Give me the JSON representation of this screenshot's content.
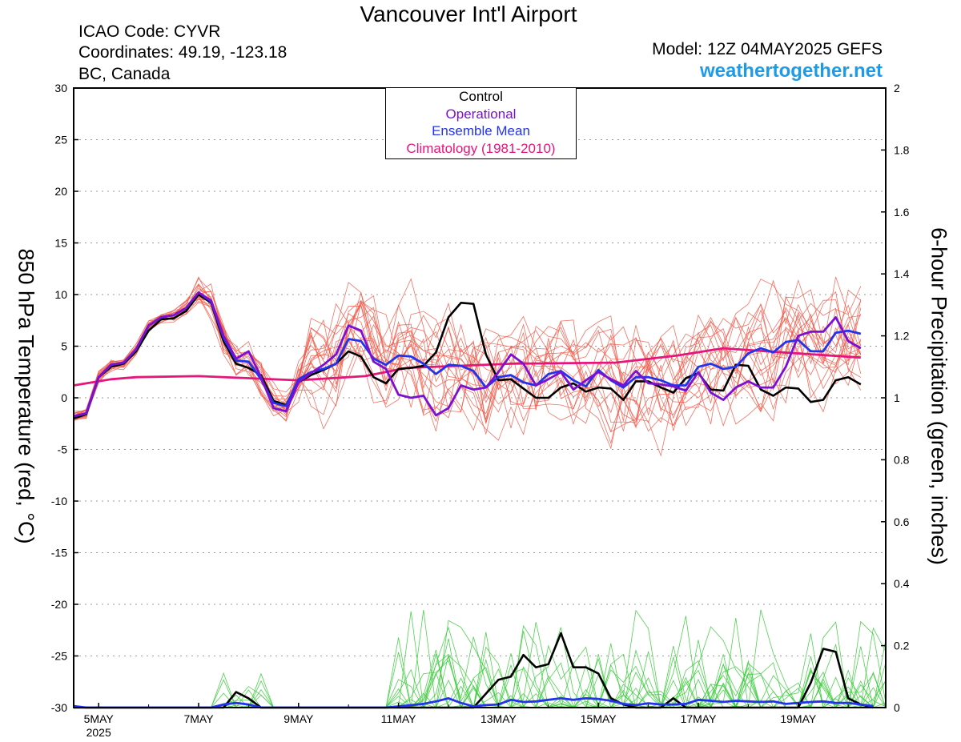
{
  "header": {
    "title": "Vancouver Int'l Airport",
    "icao": "ICAO Code: CYVR",
    "coords": "Coordinates: 49.19, -123.18",
    "region": "BC, Canada",
    "model": "Model: 12Z 04MAY2025 GEFS",
    "site": "weathertogether.net"
  },
  "legend": {
    "control": "Control",
    "operational": "Operational",
    "ensemble_mean": "Ensemble Mean",
    "climatology": "Climatology (1981-2010)"
  },
  "axes": {
    "left_label": "850 hPa Temperature (red, °C)",
    "right_label": "6-hour Precipitation (green, inches)",
    "left_ticks": [
      "30",
      "25",
      "20",
      "15",
      "10",
      "5",
      "0",
      "-5",
      "-10",
      "-15",
      "-20",
      "-25",
      "-30"
    ],
    "right_ticks": [
      "2",
      "1.8",
      "1.6",
      "1.4",
      "1.2",
      "1",
      "0.8",
      "0.6",
      "0.4",
      "0.2",
      "0"
    ],
    "x_ticks": [
      "5MAY",
      "7MAY",
      "9MAY",
      "11MAY",
      "13MAY",
      "15MAY",
      "17MAY",
      "19MAY"
    ],
    "x_year": "2025"
  },
  "colors": {
    "control": "#000000",
    "operational": "#7b0fd2",
    "ensemble_mean": "#2233ee",
    "climatology": "#e6157a",
    "members_temp": "#f05a4a",
    "members_precip": "#3ccc3c",
    "site": "#1e9be8"
  },
  "chart_data": {
    "type": "line",
    "x_unit": "forecast hours from 2025-05-04 12Z, 6-hourly",
    "x_range": [
      0,
      390
    ],
    "temp_ylim": [
      -30,
      30
    ],
    "precip_ylim": [
      0,
      2
    ],
    "series": [
      {
        "name": "Control",
        "axis": "temp",
        "values": [
          [
            0,
            -2
          ],
          [
            6,
            -1.6
          ],
          [
            12,
            2
          ],
          [
            18,
            3
          ],
          [
            24,
            3.3
          ],
          [
            30,
            4.5
          ],
          [
            36,
            6.5
          ],
          [
            42,
            7.6
          ],
          [
            48,
            7.7
          ],
          [
            54,
            8.4
          ],
          [
            60,
            10
          ],
          [
            66,
            9.2
          ],
          [
            72,
            5.5
          ],
          [
            78,
            3.3
          ],
          [
            84,
            2.9
          ],
          [
            90,
            2.2
          ],
          [
            96,
            -0.3
          ],
          [
            102,
            -0.7
          ],
          [
            108,
            1.5
          ],
          [
            114,
            2.2
          ],
          [
            120,
            2.7
          ],
          [
            126,
            3.3
          ],
          [
            132,
            4.5
          ],
          [
            138,
            4
          ],
          [
            144,
            2
          ],
          [
            150,
            1.4
          ],
          [
            156,
            2.8
          ],
          [
            162,
            2.9
          ],
          [
            168,
            3.1
          ],
          [
            174,
            4.4
          ],
          [
            180,
            7.8
          ],
          [
            186,
            9.2
          ],
          [
            192,
            9.1
          ],
          [
            198,
            4.2
          ],
          [
            204,
            1.7
          ],
          [
            210,
            1.8
          ],
          [
            216,
            0.9
          ],
          [
            222,
            0
          ],
          [
            228,
            0
          ],
          [
            234,
            1
          ],
          [
            240,
            1.4
          ],
          [
            246,
            0.6
          ],
          [
            252,
            1
          ],
          [
            258,
            0.9
          ],
          [
            264,
            -0.2
          ],
          [
            270,
            1.6
          ],
          [
            276,
            1.6
          ],
          [
            282,
            1
          ],
          [
            288,
            0.5
          ],
          [
            294,
            1.9
          ],
          [
            300,
            2.4
          ],
          [
            306,
            0.8
          ],
          [
            312,
            0.7
          ],
          [
            318,
            3.2
          ],
          [
            324,
            3.1
          ],
          [
            330,
            0.8
          ],
          [
            336,
            0.2
          ],
          [
            342,
            1
          ],
          [
            348,
            0.9
          ],
          [
            354,
            -0.4
          ],
          [
            360,
            -0.2
          ],
          [
            366,
            1.7
          ],
          [
            372,
            2
          ],
          [
            378,
            1.3
          ]
        ]
      },
      {
        "name": "Operational",
        "axis": "temp",
        "values": [
          [
            0,
            -1.8
          ],
          [
            6,
            -1.5
          ],
          [
            12,
            2
          ],
          [
            18,
            3.2
          ],
          [
            24,
            3.4
          ],
          [
            30,
            4.7
          ],
          [
            36,
            7
          ],
          [
            42,
            7.8
          ],
          [
            48,
            8
          ],
          [
            54,
            8.7
          ],
          [
            60,
            10.2
          ],
          [
            66,
            9.4
          ],
          [
            72,
            6
          ],
          [
            78,
            3.8
          ],
          [
            84,
            4.5
          ],
          [
            90,
            2
          ],
          [
            96,
            -1
          ],
          [
            102,
            -1.3
          ],
          [
            108,
            1.5
          ],
          [
            114,
            2.4
          ],
          [
            120,
            3.2
          ],
          [
            126,
            4.2
          ],
          [
            132,
            7
          ],
          [
            138,
            6.5
          ],
          [
            144,
            3.5
          ],
          [
            150,
            2.8
          ],
          [
            156,
            0.3
          ],
          [
            162,
            0
          ],
          [
            168,
            0.2
          ],
          [
            174,
            -1.7
          ],
          [
            180,
            -1
          ],
          [
            186,
            1.2
          ],
          [
            192,
            0.8
          ],
          [
            198,
            1
          ],
          [
            204,
            2.5
          ],
          [
            210,
            4.2
          ],
          [
            216,
            3.3
          ],
          [
            222,
            1.2
          ],
          [
            228,
            1.8
          ],
          [
            234,
            2.5
          ],
          [
            240,
            0.8
          ],
          [
            246,
            1.7
          ],
          [
            252,
            2.5
          ],
          [
            258,
            1.8
          ],
          [
            264,
            1.2
          ],
          [
            270,
            2.6
          ],
          [
            276,
            1.4
          ],
          [
            282,
            1.3
          ],
          [
            288,
            1.1
          ],
          [
            294,
            0.7
          ],
          [
            300,
            2.5
          ],
          [
            306,
            0.5
          ],
          [
            312,
            -0.2
          ],
          [
            318,
            1
          ],
          [
            324,
            1.6
          ],
          [
            330,
            1
          ],
          [
            336,
            1
          ],
          [
            342,
            3
          ],
          [
            348,
            6
          ],
          [
            354,
            6.4
          ],
          [
            360,
            6.4
          ],
          [
            366,
            7.8
          ],
          [
            372,
            5.5
          ],
          [
            378,
            4.8
          ]
        ]
      },
      {
        "name": "Ensemble Mean",
        "axis": "temp",
        "values": [
          [
            0,
            -1.8
          ],
          [
            6,
            -1.5
          ],
          [
            12,
            2
          ],
          [
            18,
            3.2
          ],
          [
            24,
            3.4
          ],
          [
            30,
            4.7
          ],
          [
            36,
            7
          ],
          [
            42,
            7.8
          ],
          [
            48,
            8
          ],
          [
            54,
            8.7
          ],
          [
            60,
            10.2
          ],
          [
            66,
            9.3
          ],
          [
            72,
            5.8
          ],
          [
            78,
            3.6
          ],
          [
            84,
            3.5
          ],
          [
            90,
            1.8
          ],
          [
            96,
            -0.5
          ],
          [
            102,
            -0.8
          ],
          [
            108,
            1.8
          ],
          [
            114,
            2.5
          ],
          [
            120,
            2.8
          ],
          [
            126,
            3.3
          ],
          [
            132,
            5.7
          ],
          [
            138,
            5.5
          ],
          [
            144,
            3.8
          ],
          [
            150,
            3.2
          ],
          [
            156,
            4.1
          ],
          [
            162,
            4
          ],
          [
            168,
            3.3
          ],
          [
            174,
            2.3
          ],
          [
            180,
            3.2
          ],
          [
            186,
            3.1
          ],
          [
            192,
            2.6
          ],
          [
            198,
            1
          ],
          [
            204,
            2
          ],
          [
            210,
            2.2
          ],
          [
            216,
            1.5
          ],
          [
            222,
            1.2
          ],
          [
            228,
            2.3
          ],
          [
            234,
            2.6
          ],
          [
            240,
            1.7
          ],
          [
            246,
            1.1
          ],
          [
            252,
            2.7
          ],
          [
            258,
            1.7
          ],
          [
            264,
            1
          ],
          [
            270,
            2
          ],
          [
            276,
            2
          ],
          [
            282,
            1.7
          ],
          [
            288,
            1.2
          ],
          [
            294,
            1.2
          ],
          [
            300,
            3
          ],
          [
            306,
            3.3
          ],
          [
            312,
            2.8
          ],
          [
            318,
            3
          ],
          [
            324,
            4.3
          ],
          [
            330,
            4.8
          ],
          [
            336,
            4.4
          ],
          [
            342,
            5.4
          ],
          [
            348,
            5.6
          ],
          [
            354,
            4.5
          ],
          [
            360,
            4.5
          ],
          [
            366,
            6.3
          ],
          [
            372,
            6.5
          ],
          [
            378,
            6.2
          ]
        ]
      },
      {
        "name": "Climatology (1981-2010)",
        "axis": "temp",
        "values": [
          [
            0,
            1.2
          ],
          [
            18,
            1.8
          ],
          [
            30,
            2
          ],
          [
            60,
            2.1
          ],
          [
            108,
            1.7
          ],
          [
            140,
            2.1
          ],
          [
            160,
            2.9
          ],
          [
            210,
            3.3
          ],
          [
            260,
            3.4
          ],
          [
            290,
            4.1
          ],
          [
            312,
            4.8
          ],
          [
            340,
            4.4
          ],
          [
            378,
            3.9
          ]
        ]
      },
      {
        "name": "Control",
        "axis": "precip",
        "values": [
          [
            0,
            0
          ],
          [
            72,
            0
          ],
          [
            78,
            0.05
          ],
          [
            84,
            0.03
          ],
          [
            90,
            0
          ],
          [
            192,
            0
          ],
          [
            204,
            0.09
          ],
          [
            210,
            0.1
          ],
          [
            216,
            0.17
          ],
          [
            222,
            0.13
          ],
          [
            228,
            0.14
          ],
          [
            234,
            0.24
          ],
          [
            240,
            0.13
          ],
          [
            246,
            0.13
          ],
          [
            252,
            0.11
          ],
          [
            258,
            0.03
          ],
          [
            264,
            0.01
          ],
          [
            270,
            0
          ],
          [
            282,
            0
          ],
          [
            288,
            0.03
          ],
          [
            294,
            0
          ],
          [
            348,
            0
          ],
          [
            354,
            0.08
          ],
          [
            360,
            0.19
          ],
          [
            366,
            0.18
          ],
          [
            372,
            0.03
          ],
          [
            378,
            0.01
          ],
          [
            384,
            0
          ]
        ]
      },
      {
        "name": "Ensemble Mean",
        "axis": "precip",
        "values": [
          [
            0,
            0.005
          ],
          [
            6,
            0
          ],
          [
            66,
            0
          ],
          [
            72,
            0.01
          ],
          [
            78,
            0.015
          ],
          [
            84,
            0.01
          ],
          [
            90,
            0
          ],
          [
            150,
            0
          ],
          [
            168,
            0.012
          ],
          [
            174,
            0.02
          ],
          [
            180,
            0.03
          ],
          [
            186,
            0.015
          ],
          [
            192,
            0.004
          ],
          [
            198,
            0.008
          ],
          [
            204,
            0.01
          ],
          [
            210,
            0.025
          ],
          [
            216,
            0.018
          ],
          [
            222,
            0.02
          ],
          [
            228,
            0.025
          ],
          [
            234,
            0.03
          ],
          [
            240,
            0.025
          ],
          [
            246,
            0.03
          ],
          [
            252,
            0.028
          ],
          [
            258,
            0.022
          ],
          [
            264,
            0.012
          ],
          [
            270,
            0.008
          ],
          [
            276,
            0.014
          ],
          [
            282,
            0.01
          ],
          [
            288,
            0.01
          ],
          [
            294,
            0.012
          ],
          [
            300,
            0.025
          ],
          [
            306,
            0.022
          ],
          [
            312,
            0.018
          ],
          [
            318,
            0.022
          ],
          [
            324,
            0.02
          ],
          [
            330,
            0.018
          ],
          [
            336,
            0.02
          ],
          [
            342,
            0.012
          ],
          [
            348,
            0.015
          ],
          [
            354,
            0.018
          ],
          [
            360,
            0.02
          ],
          [
            366,
            0.015
          ],
          [
            372,
            0.015
          ],
          [
            378,
            0.01
          ],
          [
            384,
            0.005
          ]
        ]
      }
    ]
  }
}
